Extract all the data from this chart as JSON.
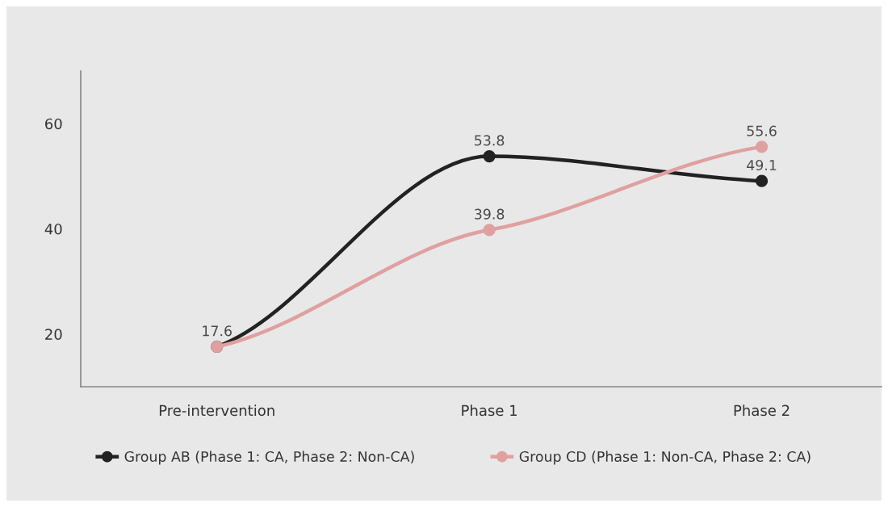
{
  "chart_data": {
    "type": "line",
    "categories": [
      "Pre-intervention",
      "Phase 1",
      "Phase 2"
    ],
    "series": [
      {
        "name": "Group AB (Phase 1: CA, Phase 2: Non-CA)",
        "color": "#222222",
        "values": [
          17.6,
          53.8,
          49.1
        ],
        "value_labels": [
          "17.6",
          "53.8",
          "49.1"
        ]
      },
      {
        "name": "Group CD (Phase 1: Non-CA, Phase 2: CA)",
        "color": "#e0a0a0",
        "values": [
          17.6,
          39.8,
          55.6
        ],
        "value_labels": [
          null,
          "39.8",
          "55.6"
        ]
      }
    ],
    "ylim": [
      10,
      70
    ],
    "yticks": [
      20,
      40,
      60
    ],
    "grid": false,
    "legend": "bottom",
    "marker": "circle",
    "line_style": "solid"
  }
}
